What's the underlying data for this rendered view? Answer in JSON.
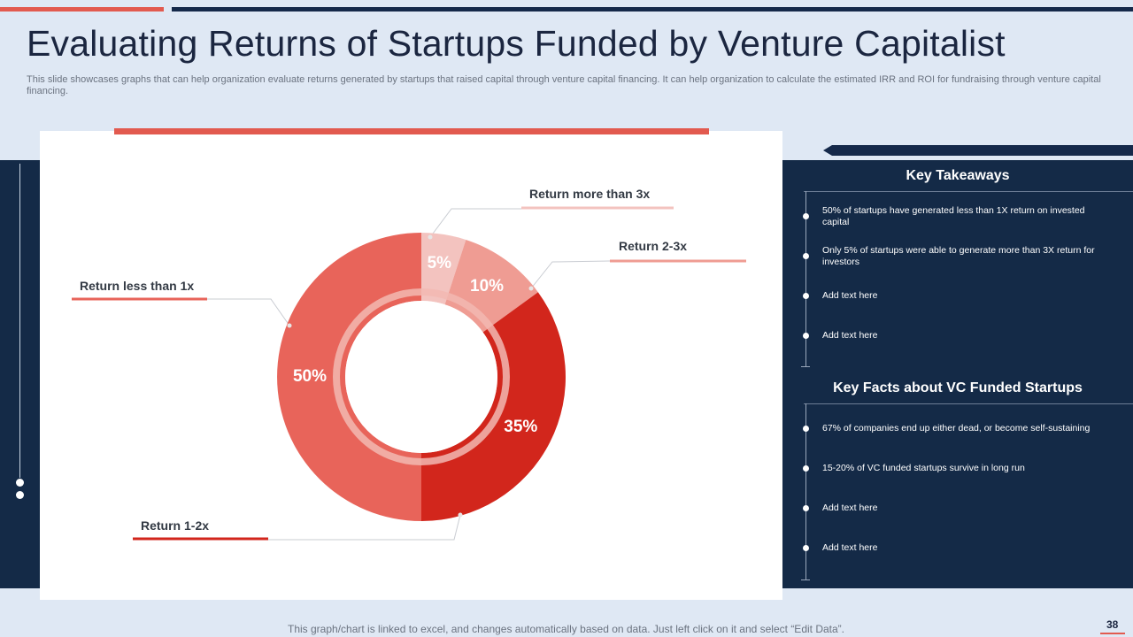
{
  "header": {
    "title": "Evaluating Returns of Startups Funded by Venture Capitalist",
    "subtitle": "This slide showcases graphs that can help organization evaluate returns generated by startups that raised capital through venture capital financing. It can help organization to calculate the estimated IRR and ROI for fundraising through venture capital financing."
  },
  "colors": {
    "accent": "#e25a4f",
    "navy": "#142a47",
    "background": "#dfe8f4"
  },
  "chart_data": {
    "type": "pie",
    "variant": "donut",
    "unit": "%",
    "series": [
      {
        "name": "Return more than 3x",
        "value": 5,
        "label": "5%",
        "color": "#f3c3bf"
      },
      {
        "name": "Return 2-3x",
        "value": 10,
        "label": "10%",
        "color": "#ef9c93"
      },
      {
        "name": "Return 1-2x",
        "value": 35,
        "label": "35%",
        "color": "#d2261c"
      },
      {
        "name": "Return less than 1x",
        "value": 50,
        "label": "50%",
        "color": "#e8645a"
      }
    ]
  },
  "takeaways": {
    "title": "Key Takeaways",
    "items": [
      "50% of startups have generated less than 1X return on invested capital",
      "Only 5% of startups were able to generate more than 3X return for investors",
      "Add text here",
      "Add text here"
    ]
  },
  "facts": {
    "title": "Key Facts about VC Funded Startups",
    "items": [
      "67% of companies end up either dead, or become self-sustaining",
      "15-20% of VC funded startups survive in long run",
      "Add text here",
      "Add text here"
    ]
  },
  "footer": {
    "note": "This graph/chart is linked to excel,  and changes automatically based on data. Just left click on it and select “Edit Data”.",
    "page_number": "38"
  }
}
